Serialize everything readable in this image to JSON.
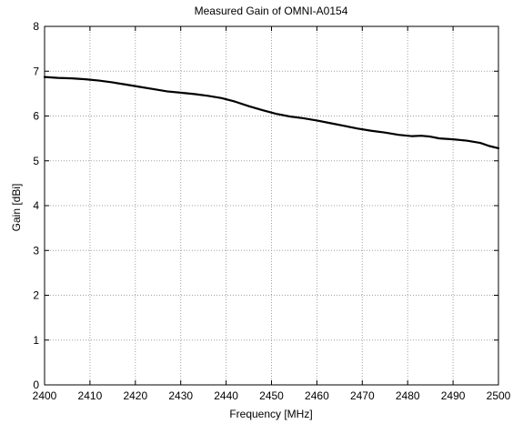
{
  "chart_data": {
    "type": "line",
    "title": "Measured Gain of OMNI-A0154",
    "xlabel": "Frequency [MHz]",
    "ylabel": "Gain [dBi]",
    "xlim": [
      2400,
      2500
    ],
    "ylim": [
      0,
      8
    ],
    "grid": true,
    "xticks": [
      2400,
      2410,
      2420,
      2430,
      2440,
      2450,
      2460,
      2470,
      2480,
      2490,
      2500
    ],
    "yticks": [
      0,
      1,
      2,
      3,
      4,
      5,
      6,
      7,
      8
    ],
    "series": [
      {
        "x": [
          2400,
          2403,
          2406,
          2409,
          2412,
          2415,
          2418,
          2421,
          2424,
          2427,
          2430,
          2433,
          2436,
          2439,
          2442,
          2445,
          2448,
          2451,
          2454,
          2457,
          2460,
          2463,
          2466,
          2469,
          2472,
          2475,
          2478,
          2481,
          2483,
          2485,
          2487,
          2490,
          2493,
          2496,
          2498,
          2500
        ],
        "y": [
          6.87,
          6.85,
          6.84,
          6.82,
          6.79,
          6.75,
          6.7,
          6.65,
          6.6,
          6.55,
          6.52,
          6.49,
          6.45,
          6.4,
          6.32,
          6.22,
          6.13,
          6.05,
          5.99,
          5.95,
          5.9,
          5.84,
          5.78,
          5.72,
          5.67,
          5.63,
          5.58,
          5.55,
          5.56,
          5.54,
          5.5,
          5.48,
          5.45,
          5.4,
          5.33,
          5.28
        ],
        "color": "#000000"
      }
    ]
  }
}
